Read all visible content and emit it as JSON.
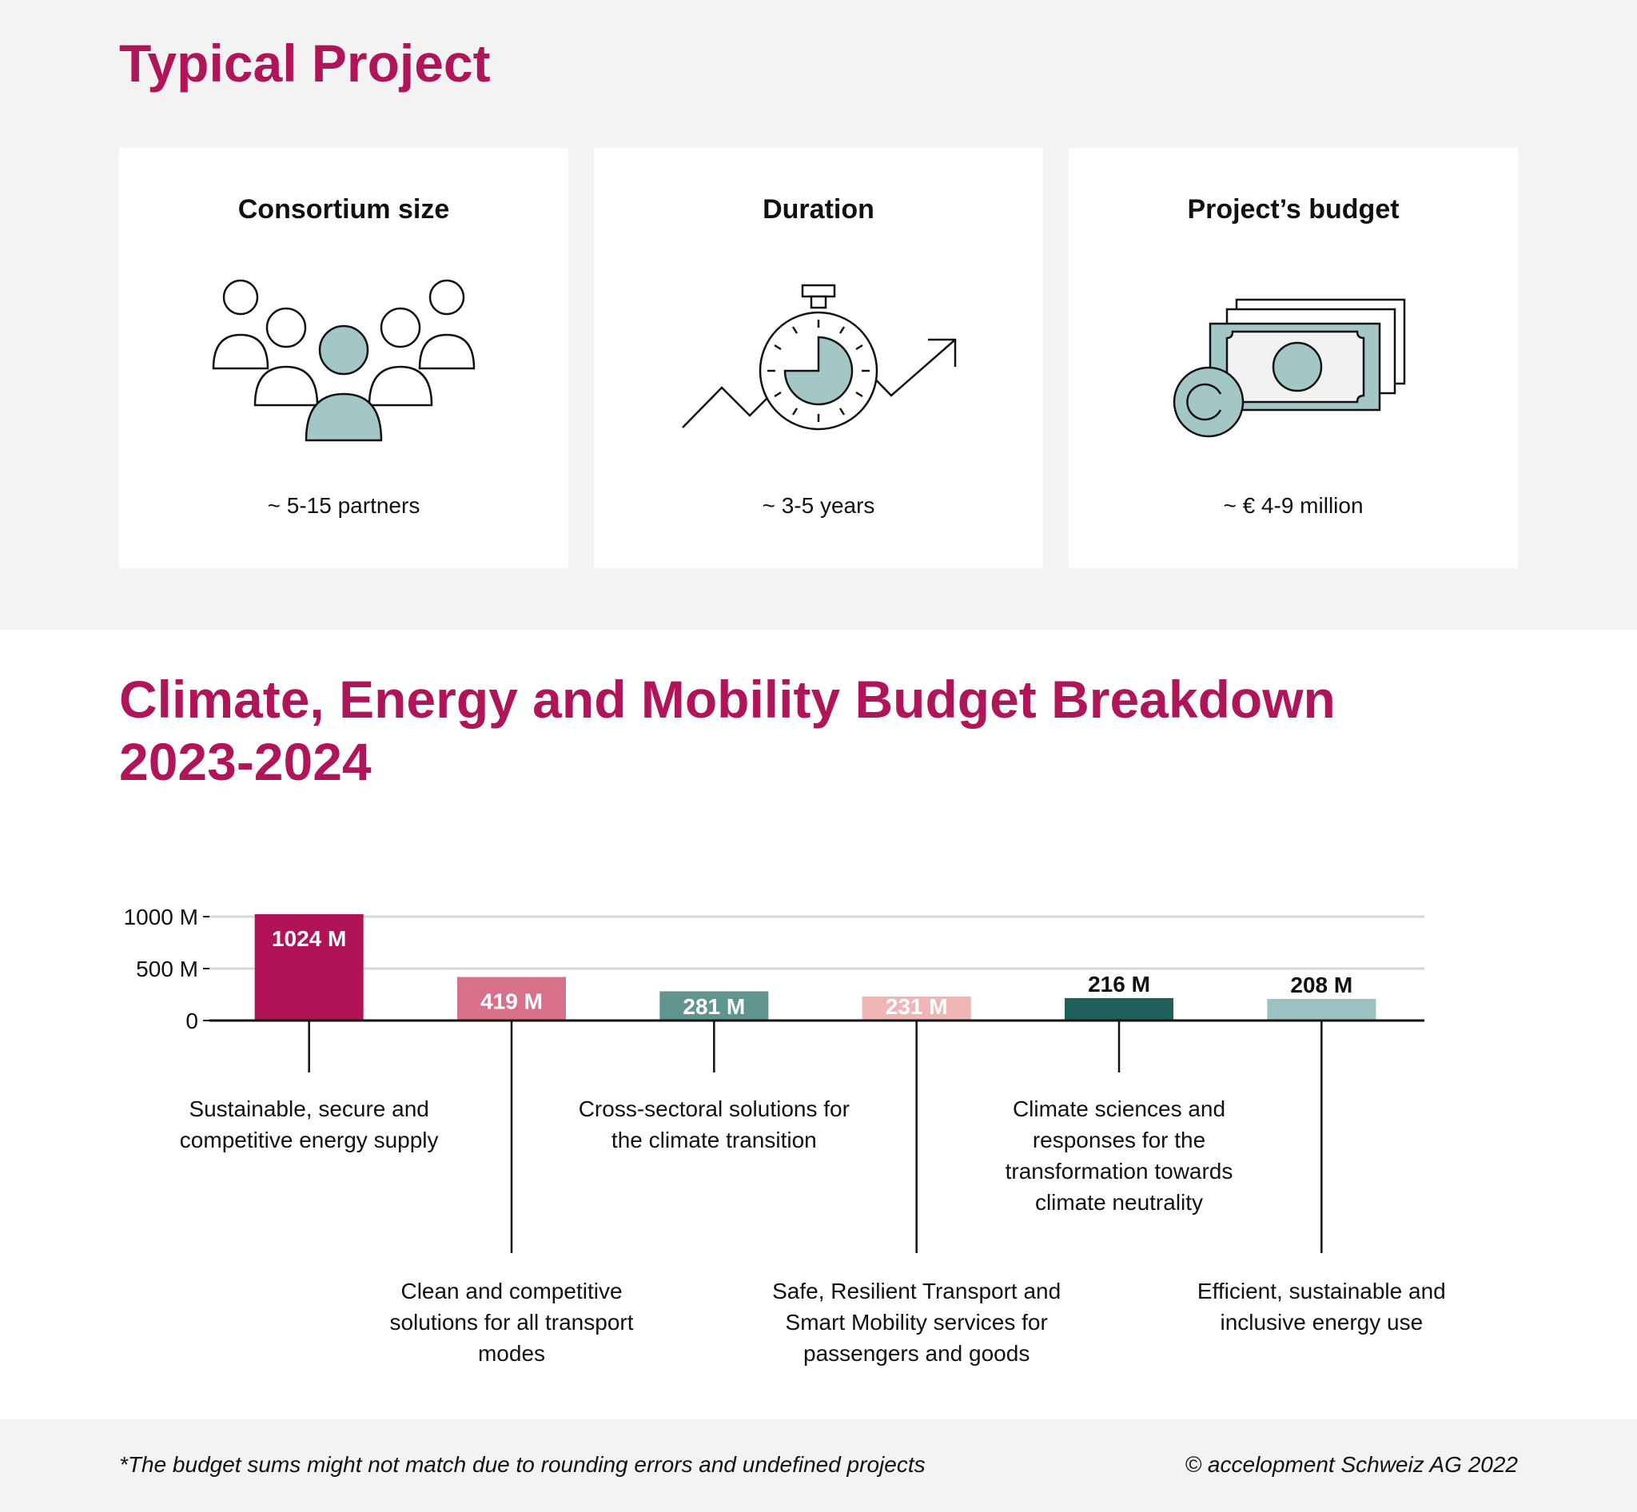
{
  "typical_project": {
    "title": "Typical Project",
    "cards": [
      {
        "title": "Consortium size",
        "value": "~ 5-15 partners",
        "icon": "people-group-icon"
      },
      {
        "title": "Duration",
        "value": "~ 3-5 years",
        "icon": "stopwatch-trend-icon"
      },
      {
        "title": "Project’s budget",
        "value": "~ € 4-9 million",
        "icon": "banknotes-coin-icon"
      }
    ]
  },
  "budget_breakdown": {
    "title_line1": "Climate, Energy and Mobility Budget Breakdown",
    "title_line2": "2023-2024"
  },
  "chart_data": {
    "type": "bar",
    "ylim": [
      0,
      1000
    ],
    "yticks": [
      0,
      500,
      1000
    ],
    "ytick_labels": [
      "0",
      "500 M",
      "1000 M"
    ],
    "grid": true,
    "categories": [
      "Sustainable, secure and competitive energy supply",
      "Clean and competitive solutions for all transport modes",
      "Cross-sectoral solutions for the climate transition",
      "Safe, Resilient Transport and Smart Mobility services for passengers and goods",
      "Climate sciences and responses for the transformation towards climate neutrality",
      "Efficient, sustainable and inclusive energy use"
    ],
    "category_lines": [
      [
        "Sustainable, secure and",
        "competitive energy supply"
      ],
      [
        "Clean and competitive",
        "solutions for all transport",
        "modes"
      ],
      [
        "Cross-sectoral solutions for",
        "the climate transition"
      ],
      [
        "Safe, Resilient Transport and",
        "Smart Mobility services for",
        "passengers and goods"
      ],
      [
        "Climate sciences and",
        "responses for the",
        "transformation towards",
        "climate neutrality"
      ],
      [
        "Efficient, sustainable and",
        "inclusive energy use"
      ]
    ],
    "values": [
      1024,
      419,
      281,
      231,
      216,
      208
    ],
    "data_labels": [
      "1024 M",
      "419 M",
      "281 M",
      "231 M",
      "216 M",
      "208 M"
    ],
    "colors": [
      "#b01457",
      "#d9708a",
      "#5f958e",
      "#f0b5b5",
      "#1f5f5c",
      "#9bc2c0"
    ],
    "label_colors": [
      "#ffffff",
      "#ffffff",
      "#ffffff",
      "#ffffff",
      "#111111",
      "#111111"
    ],
    "label_position": [
      "inside",
      "inside",
      "inside",
      "inside",
      "above",
      "above"
    ],
    "leader_length": [
      "short",
      "long",
      "short",
      "long",
      "short",
      "long"
    ]
  },
  "footer": {
    "note": "*The budget sums might not match due to rounding errors and undefined projects",
    "copyright": "© accelopment Schweiz AG 2022"
  },
  "colors": {
    "accent": "#b0155a",
    "icon_fill": "#a3c7c6",
    "band_bg": "#f3f3f3"
  }
}
